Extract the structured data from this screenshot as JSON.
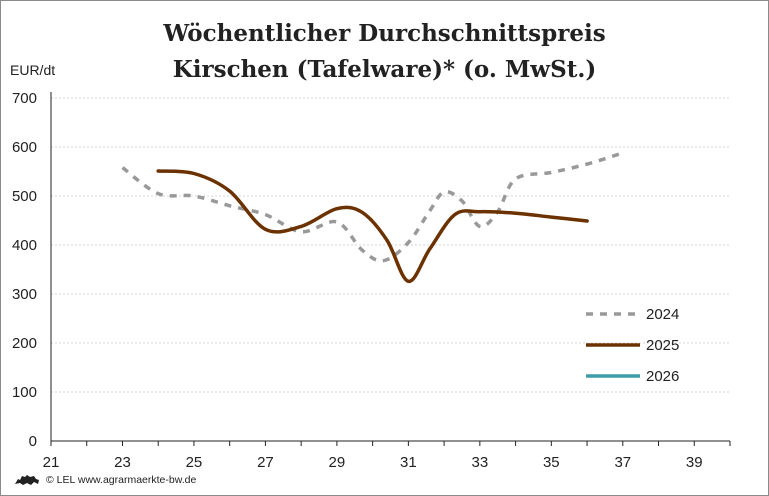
{
  "chart_data": {
    "type": "line",
    "title": "Wöchentlicher Durchschnittspreis",
    "subtitle": "Kirschen (Tafelware)* (o. MwSt.)",
    "xlabel": "",
    "ylabel": "EUR/dt",
    "xlim": [
      21,
      40
    ],
    "ylim": [
      0,
      700
    ],
    "x_ticks": [
      21,
      23,
      25,
      27,
      29,
      31,
      33,
      35,
      37,
      39
    ],
    "y_ticks": [
      0,
      100,
      200,
      300,
      400,
      500,
      600,
      700
    ],
    "grid": "horizontal dashed",
    "legend_position": "bottom-right",
    "series": [
      {
        "name": "2024",
        "color": "#999999",
        "style": "dashed",
        "x": [
          23,
          24,
          25,
          26,
          27,
          28,
          29,
          29.7,
          30.3,
          31,
          31.6,
          32,
          32.5,
          33,
          33.5,
          34,
          35,
          36,
          37
        ],
        "y": [
          558,
          505,
          500,
          480,
          462,
          427,
          447,
          390,
          368,
          405,
          470,
          508,
          490,
          438,
          468,
          535,
          548,
          565,
          588
        ]
      },
      {
        "name": "2025",
        "color": "#6b3200",
        "style": "solid",
        "x": [
          24,
          25,
          26,
          27,
          28,
          29,
          29.7,
          30.4,
          31,
          31.6,
          32.3,
          33,
          34,
          35,
          36
        ],
        "y": [
          551,
          546,
          510,
          432,
          438,
          474,
          467,
          410,
          326,
          392,
          462,
          468,
          465,
          457,
          449
        ]
      },
      {
        "name": "2026",
        "color": "#3d9dab",
        "style": "solid",
        "x": [],
        "y": []
      }
    ]
  },
  "footer": {
    "logo_icon": "lion-logo-icon",
    "text": "© LEL www.agrarmaerkte-bw.de"
  }
}
